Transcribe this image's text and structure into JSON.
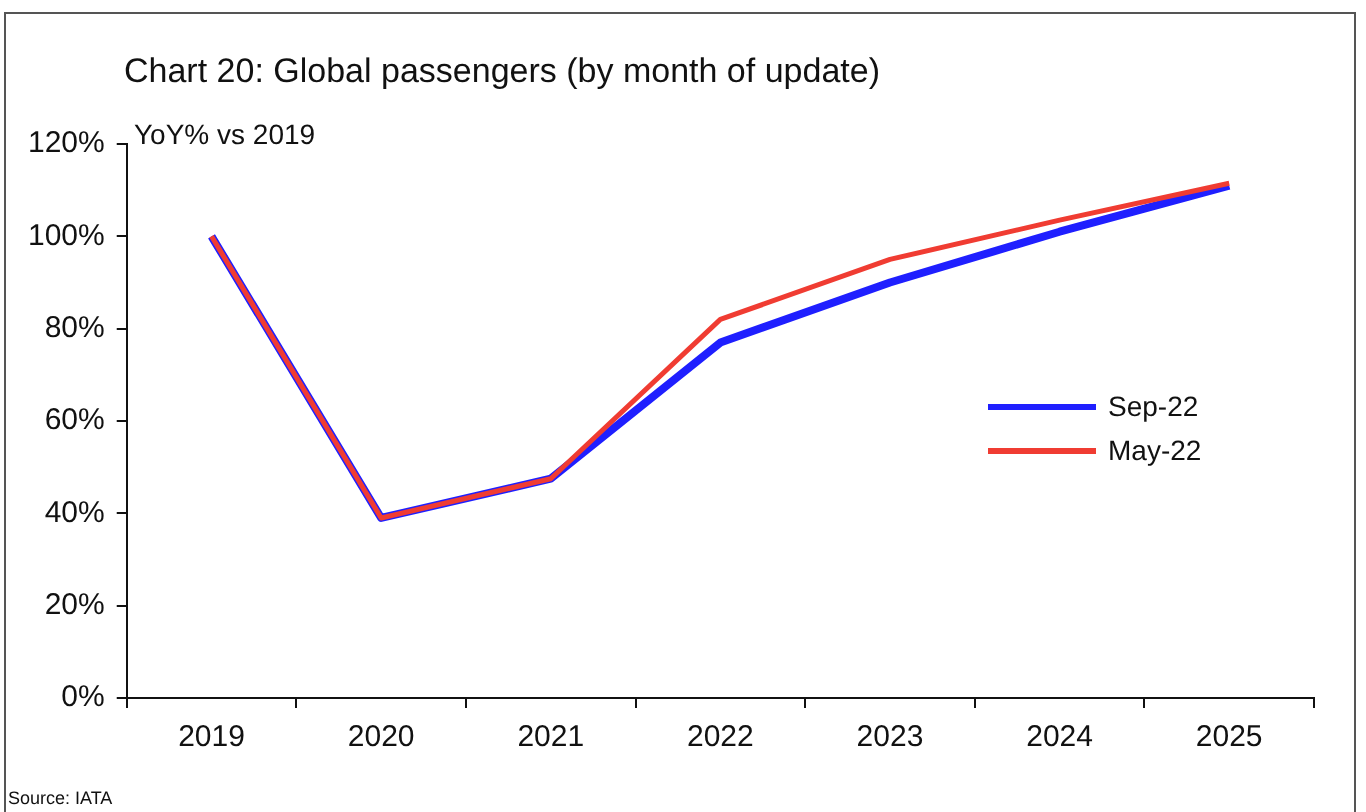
{
  "chart_data": {
    "type": "line",
    "title": "Chart 20: Global passengers (by month of update)",
    "ylabel": "YoY% vs 2019",
    "categories": [
      "2019",
      "2020",
      "2021",
      "2022",
      "2023",
      "2024",
      "2025"
    ],
    "series": [
      {
        "name": "Sep-22",
        "color": "#1f1fff",
        "values": [
          100,
          39,
          47.5,
          77,
          90,
          101,
          111
        ]
      },
      {
        "name": "May-22",
        "color": "#f03c32",
        "values": [
          100,
          39,
          47.5,
          82,
          95,
          103.5,
          111.5
        ]
      }
    ],
    "ylim": [
      0,
      120
    ],
    "yticks": [
      {
        "value": 0,
        "label": "0%"
      },
      {
        "value": 20,
        "label": "20%"
      },
      {
        "value": 40,
        "label": "40%"
      },
      {
        "value": 60,
        "label": "60%"
      },
      {
        "value": 80,
        "label": "80%"
      },
      {
        "value": 100,
        "label": "100%"
      },
      {
        "value": 120,
        "label": "120%"
      }
    ],
    "grid": false,
    "legend": "right",
    "marker": "none",
    "line_style": "solid",
    "annotations": [
      "Source: IATA"
    ]
  }
}
